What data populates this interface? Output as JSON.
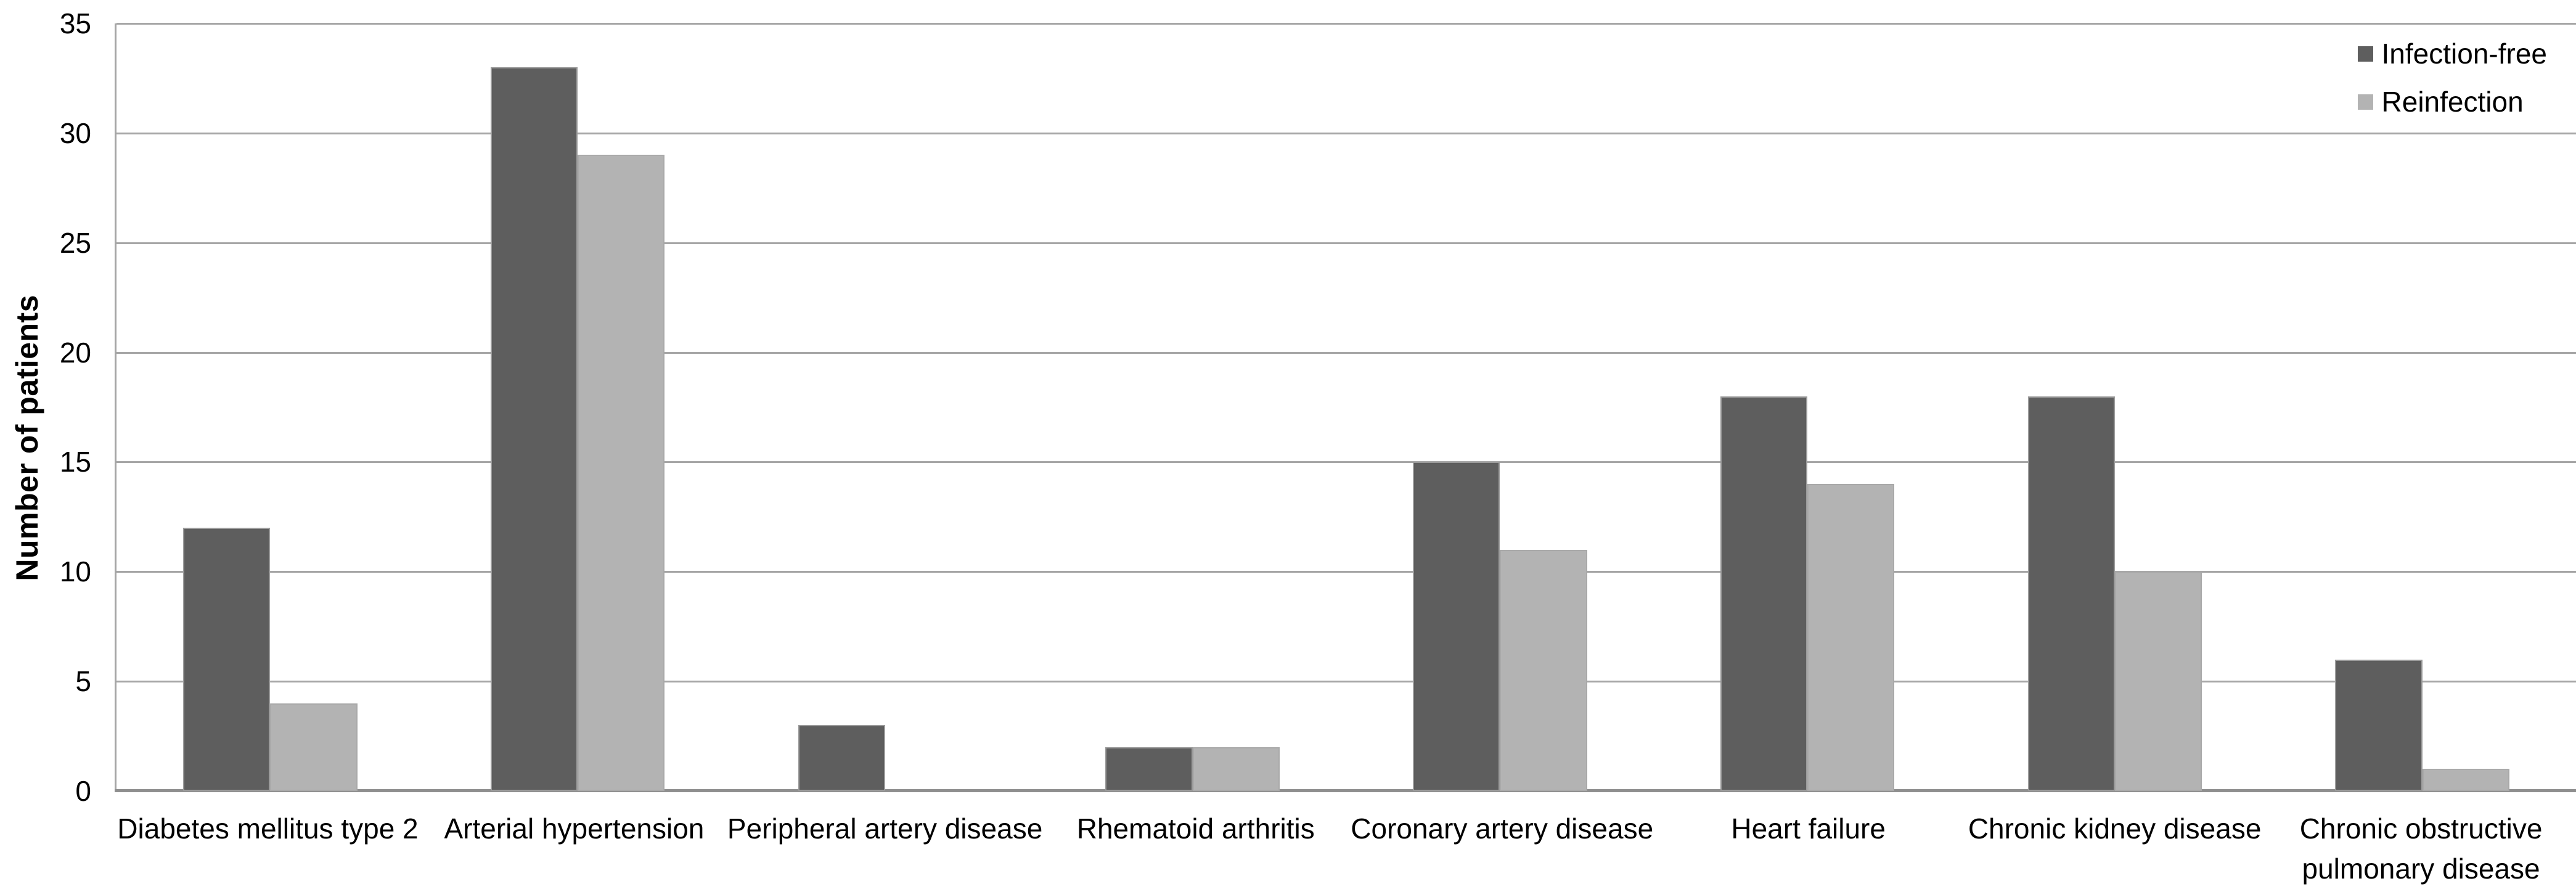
{
  "chart_data": {
    "type": "bar",
    "title": "",
    "xlabel": "",
    "ylabel": "Number of patients",
    "ylim": [
      0,
      35
    ],
    "yticks": [
      0,
      5,
      10,
      15,
      20,
      25,
      30,
      35
    ],
    "grid": "horizontal",
    "legend_position": "top-right",
    "categories": [
      "Diabetes mellitus type 2",
      "Arterial hypertension",
      "Peripheral artery disease",
      "Rhematoid arthritis",
      "Coronary artery disease",
      "Heart failure",
      "Chronic kidney disease",
      "Chronic obstructive pulmonary disease"
    ],
    "category_lines": [
      [
        "Diabetes mellitus type 2"
      ],
      [
        "Arterial hypertension"
      ],
      [
        "Peripheral artery disease"
      ],
      [
        "Rhematoid arthritis"
      ],
      [
        "Coronary artery disease"
      ],
      [
        "Heart failure"
      ],
      [
        "Chronic kidney disease"
      ],
      [
        "Chronic obstructive",
        "pulmonary disease"
      ]
    ],
    "series": [
      {
        "name": "Infection-free",
        "color": "#5e5e5e",
        "border_color": "#9b9b9b",
        "values": [
          12,
          33,
          3,
          2,
          15,
          18,
          18,
          6
        ]
      },
      {
        "name": "Reinfection",
        "color": "#b3b3b3",
        "border_color": "#a9a9a9",
        "values": [
          4,
          29,
          0,
          2,
          11,
          14,
          10,
          1
        ]
      }
    ]
  },
  "style": {
    "background": "#ffffff",
    "gridline_color": "#a6a6a6",
    "axis_line_color": "#8f8f8f",
    "text_color": "#000000"
  }
}
